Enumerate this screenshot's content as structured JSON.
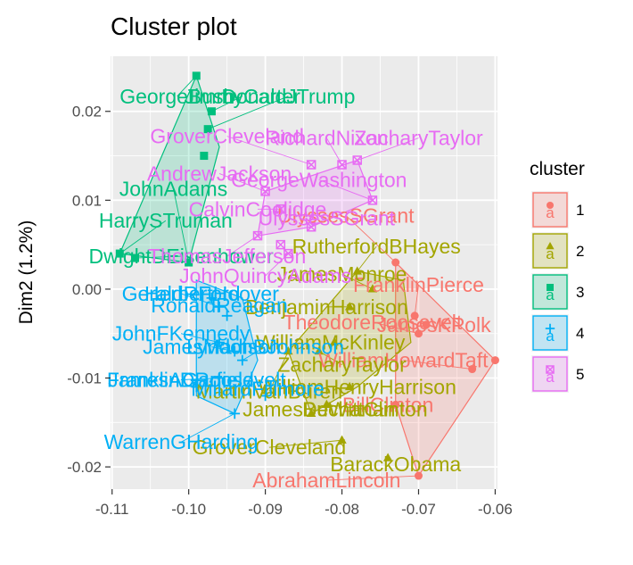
{
  "chart_data": {
    "type": "scatter",
    "title": "Cluster plot",
    "xlabel": "",
    "ylabel": "Dim2 (1.2%)",
    "xlim": [
      -0.1102,
      -0.0597
    ],
    "ylim": [
      -0.0225,
      0.0262
    ],
    "x_ticks": [
      -0.11,
      -0.1,
      -0.09,
      -0.08,
      -0.07,
      -0.06
    ],
    "x_tick_labels": [
      "-0.11",
      "-0.10",
      "-0.09",
      "-0.08",
      "-0.07",
      "-0.06"
    ],
    "y_ticks": [
      -0.02,
      -0.01,
      0.0,
      0.01,
      0.02
    ],
    "y_tick_labels": [
      "-0.02",
      "-0.01",
      "0.00",
      "0.01",
      "0.02"
    ],
    "grid": true,
    "legend": {
      "title": "cluster",
      "position": "right",
      "entries": [
        "1",
        "2",
        "3",
        "4",
        "5"
      ]
    },
    "series": [
      {
        "name": "1",
        "color": "#F8766D",
        "shape": "circle",
        "hull": [
          [
            -0.073,
            0.003
          ],
          [
            -0.06,
            -0.008
          ],
          [
            -0.07,
            -0.021
          ],
          [
            -0.073,
            -0.013
          ]
        ],
        "points": [
          {
            "x": -0.073,
            "y": 0.003,
            "label": "UlyssesSGrant",
            "lx": -0.0795,
            "ly": 0.0083
          },
          {
            "x": -0.0705,
            "y": -0.003,
            "label": "FranklinPierce",
            "lx": -0.07,
            "ly": 0.0005
          },
          {
            "x": -0.07,
            "y": -0.005,
            "label": "TheodoreRoosevelt",
            "lx": -0.076,
            "ly": -0.0037
          },
          {
            "x": -0.069,
            "y": -0.004,
            "label": "JamesKPolk",
            "lx": -0.068,
            "ly": -0.004
          },
          {
            "x": -0.063,
            "y": -0.009,
            "label": "WilliamHowardTaft",
            "lx": -0.072,
            "ly": -0.008
          },
          {
            "x": -0.06,
            "y": -0.008,
            "label": "",
            "lx": -0.06,
            "ly": -0.008
          },
          {
            "x": -0.07,
            "y": -0.021,
            "label": "AbrahamLincoln",
            "lx": -0.082,
            "ly": -0.0215
          },
          {
            "x": -0.073,
            "y": -0.013,
            "label": "BillClinton",
            "lx": -0.074,
            "ly": -0.013
          }
        ]
      },
      {
        "name": "2",
        "color": "#A3A500",
        "shape": "triangle",
        "hull": [
          [
            -0.078,
            0.002
          ],
          [
            -0.072,
            0.001
          ],
          [
            -0.071,
            -0.006
          ],
          [
            -0.078,
            -0.011
          ],
          [
            -0.084,
            -0.014
          ],
          [
            -0.087,
            -0.007
          ]
        ],
        "points": [
          {
            "x": -0.078,
            "y": 0.002,
            "label": "RutherfordBHayes",
            "lx": -0.0755,
            "ly": 0.0048
          },
          {
            "x": -0.076,
            "y": 0.0,
            "label": "JamesMonroe",
            "lx": -0.08,
            "ly": 0.0017
          },
          {
            "x": -0.079,
            "y": -0.002,
            "label": "BenjaminHarrison",
            "lx": -0.082,
            "ly": -0.002
          },
          {
            "x": -0.081,
            "y": -0.006,
            "label": "WilliamMcKinley",
            "lx": -0.0815,
            "ly": -0.006
          },
          {
            "x": -0.083,
            "y": -0.007,
            "label": "ZacharyTaylor",
            "lx": -0.08,
            "ly": -0.0085
          },
          {
            "x": -0.079,
            "y": -0.011,
            "label": "WilliamHenryHarrison",
            "lx": -0.078,
            "ly": -0.011
          },
          {
            "x": -0.084,
            "y": -0.014,
            "label": "JamesBuchanan",
            "lx": -0.083,
            "ly": -0.0135
          },
          {
            "x": -0.082,
            "y": -0.013,
            "label": "DeWittClinton",
            "lx": -0.077,
            "ly": -0.0135
          },
          {
            "x": -0.087,
            "y": -0.007,
            "label": "MartinVanBuren",
            "lx": -0.0895,
            "ly": -0.0115
          },
          {
            "x": -0.08,
            "y": -0.017,
            "label": "GroverCleveland",
            "lx": -0.0895,
            "ly": -0.0178
          },
          {
            "x": -0.074,
            "y": -0.019,
            "label": "BarackObama",
            "lx": -0.073,
            "ly": -0.0197
          }
        ]
      },
      {
        "name": "3",
        "color": "#00BF7D",
        "shape": "square",
        "hull": [
          [
            -0.099,
            0.024
          ],
          [
            -0.096,
            0.016
          ],
          [
            -0.1,
            0.003
          ],
          [
            -0.109,
            0.004
          ]
        ],
        "points": [
          {
            "x": -0.099,
            "y": 0.024,
            "label": "GeorgeBush",
            "lx": -0.1015,
            "ly": 0.0217
          },
          {
            "x": -0.097,
            "y": 0.02,
            "label": "JimmyCarter",
            "lx": -0.093,
            "ly": 0.0217
          },
          {
            "x": -0.0975,
            "y": 0.018,
            "label": "DonaldJTrump",
            "lx": -0.087,
            "ly": 0.0217
          },
          {
            "x": -0.098,
            "y": 0.015,
            "label": "",
            "lx": -0.098,
            "ly": 0.015
          },
          {
            "x": -0.1,
            "y": 0.003,
            "label": "JohnAdams",
            "lx": -0.102,
            "ly": 0.0113
          },
          {
            "x": -0.109,
            "y": 0.004,
            "label": "HarrySTruman",
            "lx": -0.103,
            "ly": 0.0077
          },
          {
            "x": -0.107,
            "y": 0.0035,
            "label": "DwightDEisenhower",
            "lx": -0.101,
            "ly": 0.0037
          }
        ]
      },
      {
        "name": "4",
        "color": "#00B0F6",
        "shape": "plus",
        "hull": [
          [
            -0.099,
            0.001
          ],
          [
            -0.093,
            -0.001
          ],
          [
            -0.091,
            -0.008
          ],
          [
            -0.094,
            -0.014
          ],
          [
            -0.099,
            -0.012
          ]
        ],
        "points": [
          {
            "x": -0.096,
            "y": -0.002,
            "label": "GeraldRFord",
            "lx": -0.101,
            "ly": -0.0005
          },
          {
            "x": -0.097,
            "y": -0.001,
            "label": "HerbertHoover",
            "lx": -0.097,
            "ly": -0.0005
          },
          {
            "x": -0.095,
            "y": -0.003,
            "label": "RonaldReagan",
            "lx": -0.096,
            "ly": -0.0018
          },
          {
            "x": -0.096,
            "y": -0.006,
            "label": "JohnFKennedy",
            "lx": -0.101,
            "ly": -0.005
          },
          {
            "x": -0.094,
            "y": -0.007,
            "label": "JamesMadison",
            "lx": -0.097,
            "ly": -0.0065
          },
          {
            "x": -0.093,
            "y": -0.008,
            "label": "LyndonBJohnson",
            "lx": -0.09,
            "ly": -0.0065
          },
          {
            "x": -0.099,
            "y": -0.011,
            "label": "FranklinDRoosevelt",
            "lx": -0.099,
            "ly": -0.0102
          },
          {
            "x": -0.096,
            "y": -0.01,
            "label": "JamesAGarfield",
            "lx": -0.101,
            "ly": -0.0102
          },
          {
            "x": -0.094,
            "y": -0.014,
            "label": "WarrenGHarding",
            "lx": -0.101,
            "ly": -0.0172
          },
          {
            "x": -0.09,
            "y": -0.012,
            "label": "MillardFillmore",
            "lx": -0.091,
            "ly": -0.0112
          }
        ]
      },
      {
        "name": "5",
        "color": "#E76BF3",
        "shape": "square-cross",
        "hull": [
          [
            -0.078,
            0.0145
          ],
          [
            -0.076,
            0.01
          ],
          [
            -0.084,
            0.007
          ],
          [
            -0.091,
            0.006
          ],
          [
            -0.09,
            0.011
          ]
        ],
        "points": [
          {
            "x": -0.078,
            "y": 0.0145,
            "label": "ZacharyTaylor",
            "lx": -0.07,
            "ly": 0.017
          },
          {
            "x": -0.08,
            "y": 0.014,
            "label": "RichardNixon",
            "lx": -0.082,
            "ly": 0.017
          },
          {
            "x": -0.084,
            "y": 0.014,
            "label": "GroverCleveland",
            "lx": -0.095,
            "ly": 0.0172
          },
          {
            "x": -0.076,
            "y": 0.01,
            "label": "GeorgeWashington",
            "lx": -0.083,
            "ly": 0.0123
          },
          {
            "x": -0.09,
            "y": 0.011,
            "label": "AndrewJackson",
            "lx": -0.096,
            "ly": 0.013
          },
          {
            "x": -0.088,
            "y": 0.009,
            "label": "CalvinCoolidge",
            "lx": -0.091,
            "ly": 0.009
          },
          {
            "x": -0.084,
            "y": 0.007,
            "label": "UlyssesSGrant",
            "lx": -0.082,
            "ly": 0.008
          },
          {
            "x": -0.091,
            "y": 0.006,
            "label": "ThomasJefferson",
            "lx": -0.095,
            "ly": 0.0037
          },
          {
            "x": -0.087,
            "y": 0.004,
            "label": "JohnQuincyAdams",
            "lx": -0.09,
            "ly": 0.0015
          },
          {
            "x": -0.088,
            "y": 0.005,
            "label": "",
            "lx": -0.088,
            "ly": 0.005
          }
        ]
      }
    ]
  }
}
